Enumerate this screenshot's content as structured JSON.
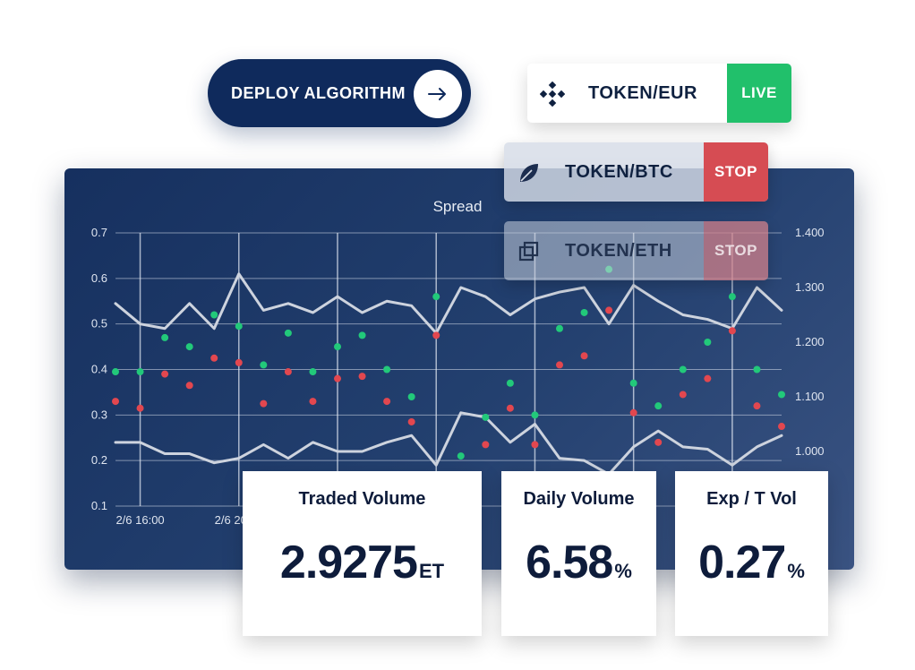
{
  "deploy": {
    "label": "DEPLOY ALGORITHM",
    "icon": "arrow-right-icon"
  },
  "pairs": [
    {
      "name": "TOKEN/EUR",
      "status": "LIVE",
      "icon": "binance-icon",
      "status_color": "#21c06b"
    },
    {
      "name": "TOKEN/BTC",
      "status": "STOP",
      "icon": "leaf-icon",
      "status_color": "#d64c53"
    },
    {
      "name": "TOKEN/ETH",
      "status": "STOP",
      "icon": "copy-icon",
      "status_color": "#d64c53"
    }
  ],
  "metrics": [
    {
      "title": "Traded Volume",
      "value": "2.9275",
      "unit": "ET"
    },
    {
      "title": "Daily Volume",
      "value": "6.58",
      "unit": "%"
    },
    {
      "title": "Exp / T Vol",
      "value": "0.27",
      "unit": "%"
    }
  ],
  "chart_data": {
    "type": "line",
    "title": "Spread",
    "x_tick_labels": [
      "2/6 16:00",
      "2/6 20:00"
    ],
    "y_left": {
      "ticks": [
        "0.1",
        "0.2",
        "0.3",
        "0.4",
        "0.5",
        "0.6",
        "0.7"
      ],
      "ylim": [
        0.1,
        0.7
      ]
    },
    "y_right": {
      "ticks": [
        "1.000",
        "1.100",
        "1.200",
        "1.300",
        "1.400"
      ],
      "ylim": [
        0.9,
        1.4
      ]
    },
    "grid": true,
    "colors": {
      "line": "#cdd3de",
      "green_dot": "#22c97a",
      "red_dot": "#e2474f"
    },
    "x": [
      0,
      1,
      2,
      3,
      4,
      5,
      6,
      7,
      8,
      9,
      10,
      11,
      12,
      13,
      14,
      15,
      16,
      17,
      18,
      19,
      20,
      21,
      22,
      23,
      24,
      25,
      26,
      27
    ],
    "series": [
      {
        "axis": "left",
        "values": [
          0.545,
          0.5,
          0.49,
          0.545,
          0.49,
          0.61,
          0.53,
          0.545,
          0.525,
          0.56,
          0.525,
          0.55,
          0.54,
          0.48,
          0.58,
          0.56,
          0.52,
          0.555,
          0.57,
          0.58,
          0.5,
          0.585,
          0.55,
          0.52,
          0.51,
          0.49,
          0.58,
          0.53
        ]
      },
      {
        "axis": "left",
        "values": [
          0.24,
          0.24,
          0.215,
          0.215,
          0.195,
          0.205,
          0.235,
          0.205,
          0.24,
          0.22,
          0.22,
          0.24,
          0.255,
          0.19,
          0.305,
          0.295,
          0.24,
          0.28,
          0.205,
          0.2,
          0.17,
          0.23,
          0.265,
          0.23,
          0.225,
          0.19,
          0.23,
          0.255
        ]
      },
      {
        "axis": "left",
        "type": "scatter",
        "color": "green",
        "values": [
          0.395,
          0.395,
          0.47,
          0.45,
          0.52,
          0.495,
          0.41,
          0.48,
          0.395,
          0.45,
          0.475,
          0.4,
          0.34,
          0.56,
          0.21,
          0.295,
          0.37,
          0.3,
          0.49,
          0.525,
          0.62,
          0.37,
          0.32,
          0.4,
          0.46,
          0.56,
          0.4,
          0.345
        ]
      },
      {
        "axis": "left",
        "type": "scatter",
        "color": "red",
        "values": [
          0.33,
          0.315,
          0.39,
          0.365,
          0.425,
          0.415,
          0.325,
          0.395,
          0.33,
          0.38,
          0.385,
          0.33,
          0.285,
          0.475,
          0.165,
          0.235,
          0.315,
          0.235,
          0.41,
          0.43,
          0.53,
          0.305,
          0.24,
          0.345,
          0.38,
          0.485,
          0.32,
          0.275
        ]
      }
    ]
  }
}
